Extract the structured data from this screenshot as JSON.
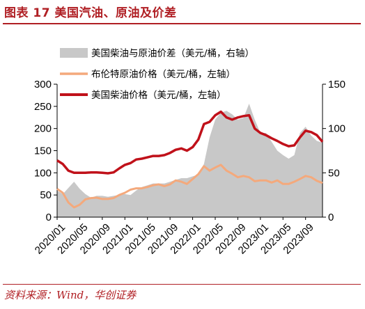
{
  "figure": {
    "title": "图表 17 美国汽油、原油及价差",
    "source": "资料来源：Wind，华创证券"
  },
  "colors": {
    "accent": "#b01f24",
    "spread_fill": "#c8c8c8",
    "brent_line": "#f4a97c",
    "us_diesel_line": "#c0111a"
  },
  "chart_data": {
    "type": "line",
    "title": "",
    "x_tick_labels": [
      "2020/01",
      "2020/05",
      "2020/09",
      "2021/01",
      "2021/05",
      "2021/09",
      "2022/01",
      "2022/05",
      "2022/09",
      "2023/01",
      "2023/05",
      "2023/09"
    ],
    "x": [
      "2020/01",
      "2020/02",
      "2020/03",
      "2020/04",
      "2020/05",
      "2020/06",
      "2020/07",
      "2020/08",
      "2020/09",
      "2020/10",
      "2020/11",
      "2020/12",
      "2021/01",
      "2021/02",
      "2021/03",
      "2021/04",
      "2021/05",
      "2021/06",
      "2021/07",
      "2021/08",
      "2021/09",
      "2021/10",
      "2021/11",
      "2021/12",
      "2022/01",
      "2022/02",
      "2022/03",
      "2022/04",
      "2022/05",
      "2022/06",
      "2022/07",
      "2022/08",
      "2022/09",
      "2022/10",
      "2022/11",
      "2022/12",
      "2023/01",
      "2023/02",
      "2023/03",
      "2023/04",
      "2023/05",
      "2023/06",
      "2023/07",
      "2023/08",
      "2023/09",
      "2023/10",
      "2023/11",
      "2023/12"
    ],
    "left_axis": {
      "min": 0,
      "max": 300,
      "ticks": [
        0,
        50,
        100,
        150,
        200,
        250,
        300
      ]
    },
    "right_axis": {
      "min": 0,
      "max": 150,
      "ticks": [
        0,
        50,
        100,
        150
      ]
    },
    "legend_position": "top",
    "series": [
      {
        "name": "美国柴油与原油价差（美元/桶，右轴）",
        "type": "area",
        "axis": "right",
        "values": [
          30,
          26,
          33,
          40,
          32,
          26,
          22,
          24,
          24,
          23,
          24,
          25,
          26,
          25,
          30,
          34,
          36,
          38,
          38,
          38,
          40,
          42,
          44,
          44,
          46,
          48,
          60,
          90,
          110,
          118,
          120,
          116,
          110,
          112,
          128,
          110,
          95,
          95,
          85,
          75,
          70,
          66,
          70,
          95,
          102,
          92,
          86,
          84
        ]
      },
      {
        "name": "布伦特原油价格（美元/桶，左轴）",
        "type": "line",
        "axis": "left",
        "values": [
          64,
          55,
          33,
          22,
          28,
          40,
          43,
          44,
          41,
          41,
          43,
          50,
          55,
          62,
          65,
          65,
          68,
          72,
          74,
          70,
          74,
          83,
          80,
          75,
          86,
          97,
          115,
          105,
          112,
          118,
          105,
          98,
          90,
          93,
          90,
          81,
          83,
          83,
          78,
          83,
          75,
          75,
          80,
          86,
          93,
          90,
          82,
          77
        ]
      },
      {
        "name": "美国柴油价格（美元/桶，左轴）",
        "type": "line",
        "axis": "left",
        "values": [
          128,
          120,
          105,
          100,
          100,
          100,
          101,
          101,
          100,
          99,
          101,
          110,
          118,
          122,
          130,
          132,
          135,
          138,
          138,
          140,
          145,
          152,
          155,
          150,
          158,
          175,
          210,
          215,
          230,
          238,
          225,
          220,
          225,
          228,
          230,
          200,
          190,
          185,
          178,
          172,
          165,
          160,
          162,
          180,
          195,
          192,
          185,
          170
        ]
      }
    ]
  }
}
